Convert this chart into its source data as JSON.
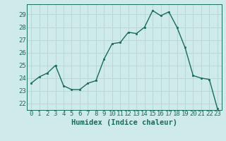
{
  "x": [
    0,
    1,
    2,
    3,
    4,
    5,
    6,
    7,
    8,
    9,
    10,
    11,
    12,
    13,
    14,
    15,
    16,
    17,
    18,
    19,
    20,
    21,
    22,
    23
  ],
  "y": [
    23.6,
    24.1,
    24.4,
    25.0,
    23.4,
    23.1,
    23.1,
    23.6,
    23.8,
    25.5,
    26.7,
    26.8,
    27.6,
    27.5,
    28.0,
    29.3,
    28.9,
    29.2,
    28.0,
    26.4,
    24.2,
    24.0,
    23.9,
    21.6
  ],
  "xlim": [
    -0.5,
    23.5
  ],
  "ylim": [
    21.5,
    29.8
  ],
  "yticks": [
    22,
    23,
    24,
    25,
    26,
    27,
    28,
    29
  ],
  "xticks": [
    0,
    1,
    2,
    3,
    4,
    5,
    6,
    7,
    8,
    9,
    10,
    11,
    12,
    13,
    14,
    15,
    16,
    17,
    18,
    19,
    20,
    21,
    22,
    23
  ],
  "xlabel": "Humidex (Indice chaleur)",
  "line_color": "#1a6b5a",
  "marker_color": "#1a6b5a",
  "bg_color": "#ceeaea",
  "grid_color": "#b8d8d8",
  "tick_label_color": "#1a6b5a",
  "xlabel_color": "#1a6b5a",
  "tick_label_fontsize": 6.5,
  "xlabel_fontsize": 7.5
}
